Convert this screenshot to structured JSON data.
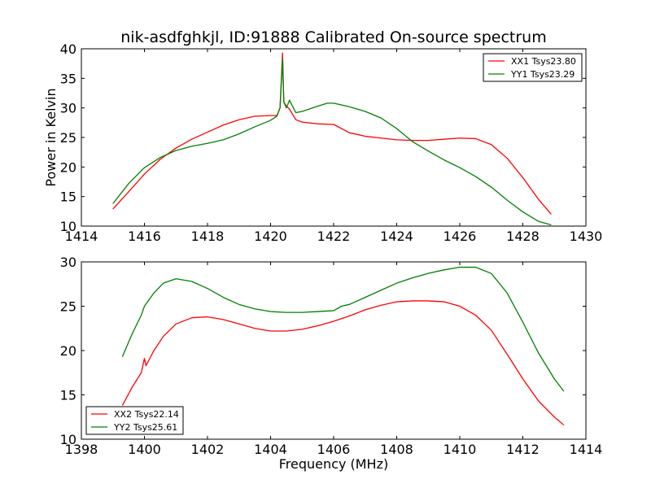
{
  "chart_data": [
    {
      "type": "line",
      "title": "nik-asdfghkjl, ID:91888 Calibrated On-source spectrum",
      "xlabel": "",
      "ylabel": "Power in Kelvin",
      "xlim": [
        1414,
        1430
      ],
      "ylim": [
        10,
        40
      ],
      "xticks": [
        "1414",
        "1416",
        "1418",
        "1420",
        "1422",
        "1424",
        "1426",
        "1428",
        "1430"
      ],
      "yticks": [
        "10",
        "15",
        "20",
        "25",
        "30",
        "35",
        "40"
      ],
      "legend_position": "top-right",
      "series": [
        {
          "name": "XX1 Tsys23.80",
          "color": "#ff0000",
          "x": [
            1415.0,
            1415.5,
            1416.0,
            1416.5,
            1417.0,
            1417.5,
            1418.0,
            1418.5,
            1419.0,
            1419.5,
            1420.0,
            1420.2,
            1420.3,
            1420.38,
            1420.42,
            1420.5,
            1420.6,
            1420.8,
            1421.0,
            1421.5,
            1422.0,
            1422.5,
            1423.0,
            1423.5,
            1424.0,
            1424.5,
            1425.0,
            1425.5,
            1426.0,
            1426.5,
            1427.0,
            1427.5,
            1428.0,
            1428.5,
            1428.9
          ],
          "y": [
            12.9,
            15.8,
            18.8,
            21.3,
            23.2,
            24.7,
            25.9,
            27.1,
            28.0,
            28.6,
            28.7,
            28.7,
            30.0,
            39.3,
            31.0,
            30.3,
            29.8,
            28.0,
            27.6,
            27.3,
            27.2,
            25.8,
            25.2,
            24.9,
            24.6,
            24.5,
            24.5,
            24.7,
            24.9,
            24.8,
            23.8,
            21.5,
            18.2,
            14.5,
            12.0
          ]
        },
        {
          "name": "YY1 Tsys23.29",
          "color": "#008000",
          "x": [
            1415.0,
            1415.5,
            1416.0,
            1416.5,
            1417.0,
            1417.5,
            1418.0,
            1418.5,
            1419.0,
            1419.5,
            1420.0,
            1420.2,
            1420.3,
            1420.38,
            1420.42,
            1420.5,
            1420.6,
            1420.8,
            1421.0,
            1421.5,
            1421.8,
            1422.0,
            1422.5,
            1423.0,
            1423.5,
            1424.0,
            1424.5,
            1425.0,
            1425.5,
            1426.0,
            1426.5,
            1427.0,
            1427.5,
            1428.0,
            1428.5,
            1428.9
          ],
          "y": [
            13.8,
            17.2,
            19.9,
            21.6,
            22.8,
            23.5,
            24.0,
            24.6,
            25.6,
            26.8,
            27.9,
            28.6,
            30.0,
            38.4,
            31.0,
            30.0,
            31.3,
            29.2,
            29.4,
            30.3,
            30.8,
            30.8,
            30.2,
            29.4,
            28.3,
            26.5,
            24.3,
            22.7,
            21.2,
            19.9,
            18.4,
            16.6,
            14.4,
            12.4,
            10.8,
            10.2
          ]
        }
      ]
    },
    {
      "type": "line",
      "title": "",
      "xlabel": "Frequency (MHz)",
      "ylabel": "",
      "xlim": [
        1398,
        1414
      ],
      "ylim": [
        10,
        30
      ],
      "xticks": [
        "1398",
        "1400",
        "1402",
        "1404",
        "1406",
        "1408",
        "1410",
        "1412",
        "1414"
      ],
      "yticks": [
        "10",
        "15",
        "20",
        "25",
        "30"
      ],
      "legend_position": "bottom-left",
      "series": [
        {
          "name": "XX2 Tsys22.14",
          "color": "#ff0000",
          "x": [
            1399.3,
            1399.6,
            1399.9,
            1400.0,
            1400.05,
            1400.3,
            1400.6,
            1401.0,
            1401.5,
            1402.0,
            1402.5,
            1403.0,
            1403.5,
            1404.0,
            1404.5,
            1405.0,
            1405.5,
            1406.0,
            1406.5,
            1407.0,
            1407.5,
            1408.0,
            1408.5,
            1409.0,
            1409.5,
            1410.0,
            1410.5,
            1411.0,
            1411.5,
            1412.0,
            1412.5,
            1413.0,
            1413.3
          ],
          "y": [
            13.8,
            15.8,
            17.5,
            19.1,
            18.3,
            20.0,
            21.6,
            23.0,
            23.7,
            23.8,
            23.5,
            23.0,
            22.5,
            22.2,
            22.2,
            22.4,
            22.8,
            23.3,
            23.9,
            24.6,
            25.1,
            25.5,
            25.6,
            25.6,
            25.5,
            25.0,
            24.0,
            22.3,
            19.6,
            16.8,
            14.3,
            12.5,
            11.6
          ]
        },
        {
          "name": "YY2 Tsys25.61",
          "color": "#008000",
          "x": [
            1399.3,
            1399.6,
            1399.9,
            1400.0,
            1400.3,
            1400.6,
            1401.0,
            1401.5,
            1402.0,
            1402.5,
            1403.0,
            1403.5,
            1404.0,
            1404.5,
            1405.0,
            1405.5,
            1406.0,
            1406.25,
            1406.5,
            1407.0,
            1407.5,
            1408.0,
            1408.5,
            1409.0,
            1409.5,
            1410.0,
            1410.5,
            1411.0,
            1411.5,
            1412.0,
            1412.5,
            1413.0,
            1413.3
          ],
          "y": [
            19.3,
            21.8,
            24.0,
            25.0,
            26.5,
            27.6,
            28.1,
            27.8,
            27.0,
            26.0,
            25.2,
            24.7,
            24.4,
            24.3,
            24.3,
            24.4,
            24.5,
            25.0,
            25.2,
            26.0,
            26.8,
            27.6,
            28.2,
            28.7,
            29.1,
            29.4,
            29.4,
            28.7,
            26.5,
            23.2,
            19.7,
            16.8,
            15.4
          ]
        }
      ]
    }
  ]
}
